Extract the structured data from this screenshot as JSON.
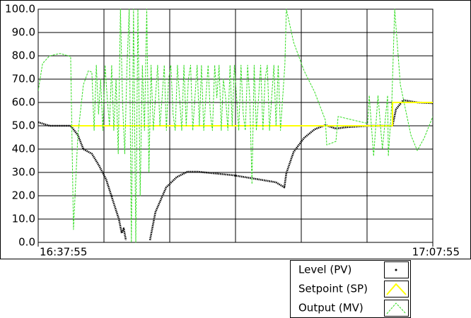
{
  "chart_data": {
    "type": "line",
    "ylim": [
      0,
      100
    ],
    "yticks": [
      {
        "value": 0,
        "label": "0.0"
      },
      {
        "value": 10,
        "label": "10.0"
      },
      {
        "value": 20,
        "label": "20.0"
      },
      {
        "value": 30,
        "label": "30.0"
      },
      {
        "value": 40,
        "label": "40.0"
      },
      {
        "value": 50,
        "label": "50.0"
      },
      {
        "value": 60,
        "label": "60.0"
      },
      {
        "value": 70,
        "label": "70.0"
      },
      {
        "value": 80,
        "label": "80.0"
      },
      {
        "value": 90,
        "label": "90.0"
      },
      {
        "value": 100,
        "label": "100.0"
      }
    ],
    "xlim": [
      0,
      1800
    ],
    "xticks": [
      {
        "value": 0,
        "label": "16:37:55"
      },
      {
        "value": 1800,
        "label": "17:07:55"
      }
    ],
    "xgrid": [
      300,
      600,
      900,
      1200,
      1500
    ],
    "grid": true,
    "series": [
      {
        "name": "Level (PV)",
        "color": "#000000",
        "x": [
          0,
          52,
          148,
          181,
          206,
          245,
          277,
          310,
          342,
          368,
          381,
          390,
          400,
          455,
          510,
          535,
          584,
          632,
          681,
          729,
          794,
          890,
          987,
          1084,
          1123,
          1132,
          1165,
          1213,
          1261,
          1310,
          1358,
          1406,
          1503,
          1616,
          1632,
          1665,
          1729,
          1800
        ],
        "values": [
          51.5,
          50,
          50,
          46,
          40,
          38,
          33,
          27,
          17.6,
          10,
          4,
          6,
          1,
          null,
          1,
          13,
          23.6,
          28,
          30.3,
          30.3,
          29.7,
          28.8,
          27.3,
          25.8,
          23.6,
          29.7,
          38.8,
          44.8,
          48.5,
          50.3,
          48.8,
          49.4,
          50,
          50,
          57,
          61,
          60,
          59.7
        ]
      },
      {
        "name": "Setpoint (SP)",
        "color": "#ffff00",
        "x": [
          148,
          1616,
          1616,
          1800
        ],
        "values": [
          50,
          50,
          60,
          60
        ]
      },
      {
        "name": "Output (MV)",
        "color": "#33dd22",
        "x": [
          0,
          20,
          52,
          100,
          148,
          161,
          181,
          206,
          229,
          245,
          255,
          265,
          275,
          285,
          295,
          305,
          315,
          325,
          335,
          345,
          355,
          365,
          375,
          385,
          395,
          405,
          415,
          425,
          435,
          445,
          455,
          465,
          475,
          485,
          495,
          505,
          515,
          525,
          535,
          545,
          555,
          565,
          575,
          585,
          595,
          605,
          615,
          625,
          635,
          645,
          655,
          665,
          675,
          685,
          695,
          705,
          715,
          725,
          735,
          745,
          755,
          765,
          775,
          785,
          795,
          805,
          815,
          825,
          835,
          845,
          855,
          865,
          875,
          885,
          895,
          905,
          915,
          925,
          935,
          945,
          955,
          965,
          975,
          985,
          995,
          1005,
          1015,
          1025,
          1035,
          1045,
          1055,
          1065,
          1075,
          1085,
          1095,
          1105,
          1115,
          1125,
          1132,
          1165,
          1213,
          1261,
          1310,
          1316,
          1358,
          1368,
          1439,
          1503,
          1510,
          1530,
          1550,
          1570,
          1594,
          1597,
          1613,
          1626,
          1652,
          1700,
          1729,
          1761,
          1800
        ],
        "values": [
          65,
          76.7,
          80,
          81,
          79.7,
          5.5,
          46,
          67.6,
          73.6,
          73,
          48,
          76,
          55,
          70,
          48,
          76,
          62,
          50,
          76,
          48,
          70,
          38,
          100,
          60,
          38,
          76,
          100,
          0,
          100,
          0,
          100,
          20,
          76,
          48,
          100,
          30,
          76,
          48,
          62,
          76,
          50,
          62,
          76,
          48,
          70,
          76,
          55,
          48,
          76,
          62,
          48,
          76,
          50,
          70,
          76,
          48,
          62,
          76,
          50,
          76,
          48,
          62,
          76,
          55,
          48,
          76,
          62,
          76,
          48,
          70,
          62,
          48,
          76,
          50,
          76,
          62,
          48,
          76,
          55,
          48,
          76,
          62,
          25,
          76,
          48,
          62,
          76,
          48,
          70,
          76,
          48,
          62,
          76,
          50,
          76,
          48,
          62,
          76,
          100,
          85.8,
          73.6,
          64.5,
          52.4,
          41.8,
          43.3,
          54,
          52.4,
          51,
          63,
          37,
          63,
          40,
          63,
          37,
          60,
          100,
          67.6,
          46,
          39.4,
          44.8,
          54
        ]
      }
    ]
  }
}
